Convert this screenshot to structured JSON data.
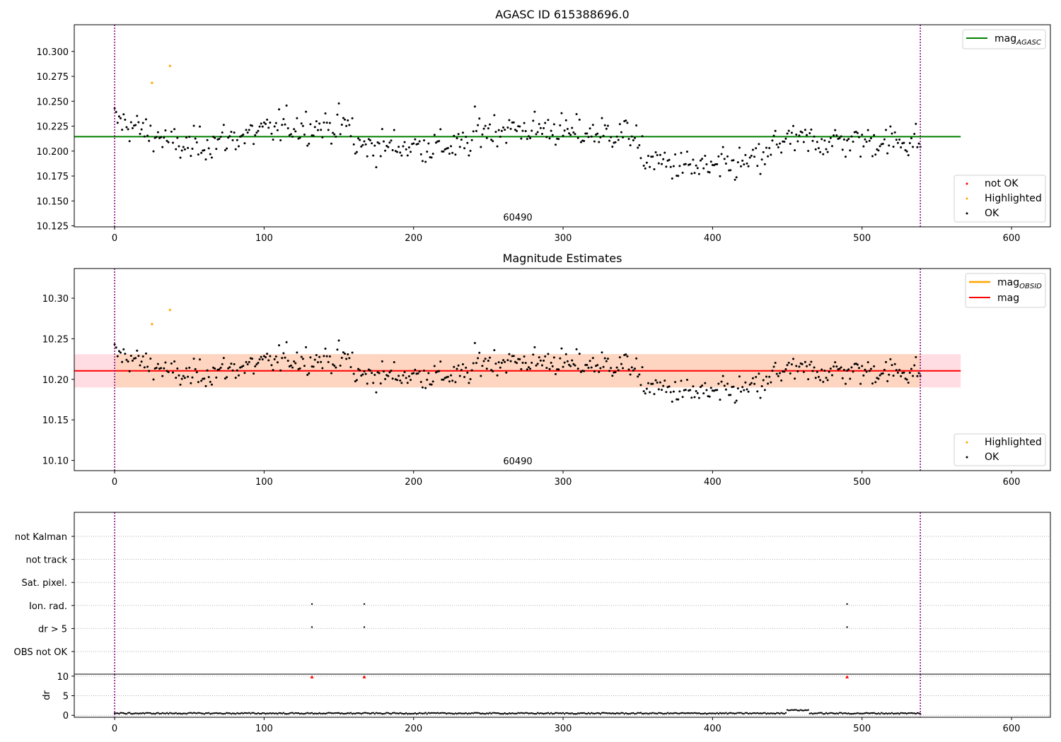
{
  "colors": {
    "ok": "#000000",
    "highlighted": "#ffa500",
    "not_ok": "#ff0000",
    "mag_agasc": "#008000",
    "mag_obsid": "#ffa500",
    "mag": "#ff0000",
    "band_outer": "#ffdde3",
    "band_inner": "#fdd5c0",
    "vline": "#800080",
    "grid": "#b0b0b0"
  },
  "chart_data": [
    {
      "type": "scatter",
      "title": "AGASC ID 615388696.0",
      "annotation": "60490",
      "xlim": [
        -27,
        626
      ],
      "ylim": [
        10.124,
        10.3268
      ],
      "xticks": [
        0,
        100,
        200,
        300,
        400,
        500,
        600
      ],
      "yticks": [
        10.125,
        10.15,
        10.175,
        10.2,
        10.225,
        10.25,
        10.275,
        10.3
      ],
      "ytick_labels": [
        "10.125",
        "10.150",
        "10.175",
        "10.200",
        "10.225",
        "10.250",
        "10.275",
        "10.300"
      ],
      "vlines": [
        0,
        539
      ],
      "lines": [
        {
          "name": "mag_AGASC",
          "y": 10.2145,
          "x": [
            -27,
            566
          ],
          "color": "#008000"
        }
      ],
      "legend_lines": [
        {
          "label": "mag",
          "sub": "AGASC",
          "color": "#008000"
        }
      ],
      "legend_points": [
        {
          "label": "not OK",
          "color": "#ff0000"
        },
        {
          "label": "Highlighted",
          "color": "#ffa500"
        },
        {
          "label": "OK",
          "color": "#000000"
        }
      ],
      "highlighted_points": [
        [
          25,
          10.2685
        ],
        [
          37,
          10.2855
        ]
      ]
    },
    {
      "type": "scatter",
      "title": "Magnitude Estimates",
      "annotation": "60490",
      "xlim": [
        -27,
        626
      ],
      "ylim": [
        10.0874,
        10.3366
      ],
      "xticks": [
        0,
        100,
        200,
        300,
        400,
        500,
        600
      ],
      "yticks": [
        10.1,
        10.15,
        10.2,
        10.25,
        10.3
      ],
      "ytick_labels": [
        "10.10",
        "10.15",
        "10.20",
        "10.25",
        "10.30"
      ],
      "vlines": [
        0,
        539
      ],
      "band_outer": {
        "x": [
          -27,
          566
        ],
        "y": [
          10.19,
          10.231
        ]
      },
      "band_inner": {
        "x": [
          0,
          539
        ],
        "y": [
          10.19,
          10.231
        ]
      },
      "lines": [
        {
          "name": "mag",
          "y": 10.2105,
          "x": [
            -27,
            566
          ],
          "color": "#ff0000"
        }
      ],
      "legend_lines": [
        {
          "label": "mag",
          "sub": "OBSID",
          "color": "#ffa500"
        },
        {
          "label": "mag",
          "sub": "",
          "color": "#ff0000"
        }
      ],
      "legend_points": [
        {
          "label": "Highlighted",
          "color": "#ffa500"
        },
        {
          "label": "OK",
          "color": "#000000"
        }
      ],
      "highlighted_points": [
        [
          25,
          10.268
        ],
        [
          37,
          10.2855
        ]
      ]
    },
    {
      "type": "scatter",
      "title": "",
      "xlim": [
        -27,
        626
      ],
      "categories": [
        "not Kalman",
        "not track",
        "Sat. pixel.",
        "Ion. rad.",
        "dr > 5",
        "OBS not OK"
      ],
      "flag_points": {
        "Ion. rad.": [
          132,
          167,
          490
        ],
        "dr > 5": [
          132,
          167,
          490
        ]
      },
      "vlines": [
        0,
        539
      ]
    },
    {
      "type": "line",
      "ylabel": "dr",
      "xlim": [
        -27,
        626
      ],
      "ylim": [
        -0.5,
        10.5
      ],
      "xticks": [
        0,
        100,
        200,
        300,
        400,
        500,
        600
      ],
      "yticks": [
        0,
        5,
        10
      ],
      "ytick_labels": [
        "0",
        "5",
        "10"
      ],
      "vlines": [
        0,
        539
      ],
      "clipped_points": [
        132,
        167,
        490
      ],
      "dr_baseline": 0.5,
      "dr_bump": {
        "x": [
          450,
          464
        ],
        "peak": 1.4
      }
    }
  ]
}
